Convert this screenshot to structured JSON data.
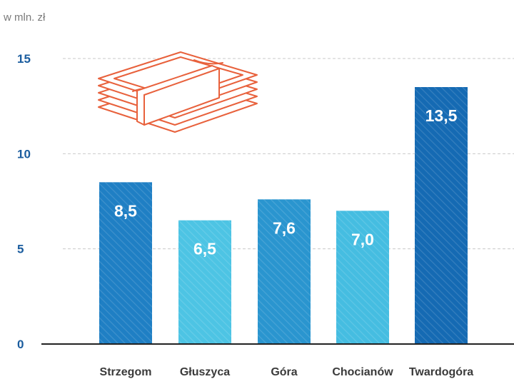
{
  "chart_data": {
    "type": "bar",
    "unit_label": "w mln. zł",
    "categories": [
      "Strzegom",
      "Głuszyca",
      "Góra",
      "Chocianów",
      "Twardogóra"
    ],
    "values": [
      8.5,
      6.5,
      7.6,
      7.0,
      13.5
    ],
    "value_labels": [
      "8,5",
      "6,5",
      "7,6",
      "7,0",
      "13,5"
    ],
    "bar_colors": [
      "#1f7fc4",
      "#4dc4e4",
      "#2a95cf",
      "#45bde1",
      "#156ab3"
    ],
    "ylim": [
      0,
      15
    ],
    "yticks": [
      0,
      5,
      10,
      15
    ],
    "ytick_labels": [
      "0",
      "5",
      "10",
      "15"
    ],
    "grid": true,
    "legend": "none",
    "colors": {
      "tick_label": "#1a5c9e",
      "illustration": "#e8613c",
      "gridline": "#c9c9c9"
    },
    "decoration": "money-stack-icon"
  }
}
